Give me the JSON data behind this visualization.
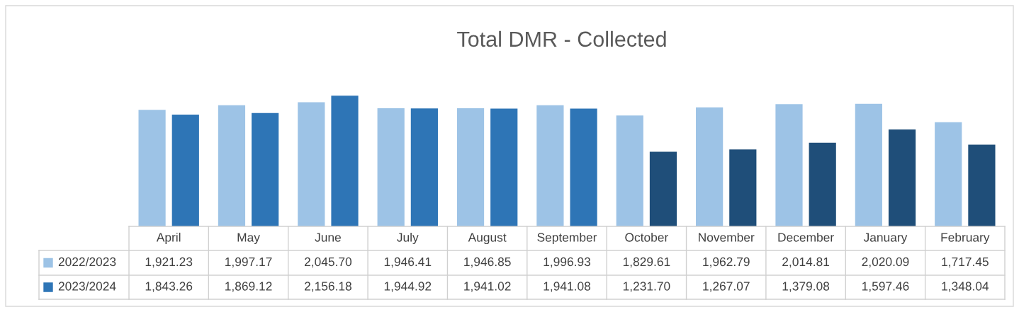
{
  "chart_data": {
    "type": "bar",
    "title": "Total DMR - Collected",
    "categories": [
      "April",
      "May",
      "June",
      "July",
      "August",
      "September",
      "October",
      "November",
      "December",
      "January",
      "February"
    ],
    "series": [
      {
        "name": "2022/2023",
        "color": "#9dc3e6",
        "values": [
          1921.23,
          1997.17,
          2045.7,
          1946.41,
          1946.85,
          1996.93,
          1829.61,
          1962.79,
          2014.81,
          2020.09,
          1717.45
        ],
        "value_labels": [
          "1,921.23",
          "1,997.17",
          "2,045.70",
          "1,946.41",
          "1,946.85",
          "1,996.93",
          "1,829.61",
          "1,962.79",
          "2,014.81",
          "2,020.09",
          "1,717.45"
        ]
      },
      {
        "name": "2023/2024",
        "color": "#2e75b6",
        "colors": [
          "#2e75b6",
          "#2e75b6",
          "#2e75b6",
          "#2e75b6",
          "#2e75b6",
          "#2e75b6",
          "#1f4e79",
          "#1f4e79",
          "#1f4e79",
          "#1f4e79",
          "#1f4e79"
        ],
        "values": [
          1843.26,
          1869.12,
          2156.18,
          1944.92,
          1941.02,
          1941.08,
          1231.7,
          1267.07,
          1379.08,
          1597.46,
          1348.04
        ],
        "value_labels": [
          "1,843.26",
          "1,869.12",
          "2,156.18",
          "1,944.92",
          "1,941.02",
          "1,941.08",
          "1,231.70",
          "1,267.07",
          "1,379.08",
          "1,597.46",
          "1,348.04"
        ]
      }
    ],
    "legend": "bottom left"
  }
}
